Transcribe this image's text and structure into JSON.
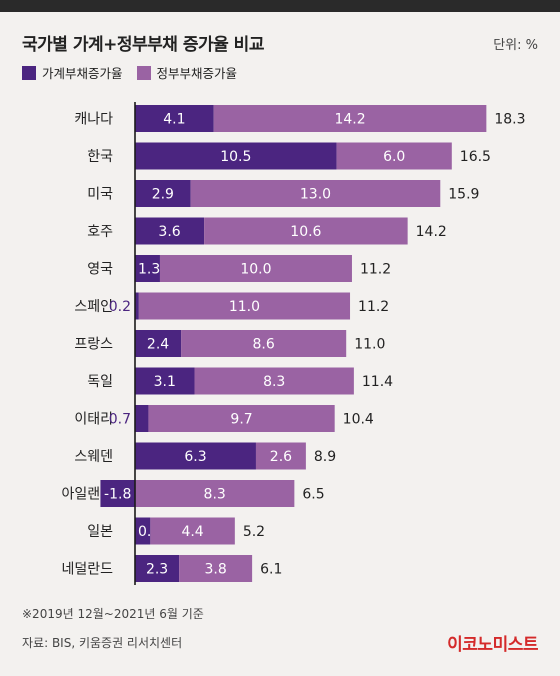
{
  "title": "국가별 가계+정부부채 증가율 비교",
  "unit": "단위: %",
  "footnote": "※2019년 12월~2021년 6월 기준",
  "source": "자료: BIS, 키움증권 리서치센터",
  "brand": "이코노미스트",
  "colors": {
    "household": "#4b2580",
    "government": "#9a63a3",
    "axis": "#1a1a1a",
    "background": "#f3f1ef"
  },
  "chart_data": {
    "type": "bar",
    "orientation": "horizontal",
    "stacked": true,
    "categories": [
      "캐나다",
      "한국",
      "미국",
      "호주",
      "영국",
      "스페인",
      "프랑스",
      "독일",
      "이태리",
      "스웨덴",
      "아일랜드",
      "일본",
      "네덜란드"
    ],
    "series": [
      {
        "name": "가계부채증가율",
        "values": [
          4.1,
          10.5,
          2.9,
          3.6,
          1.3,
          0.2,
          2.4,
          3.1,
          0.7,
          6.3,
          -1.8,
          0.8,
          2.3
        ]
      },
      {
        "name": "정부부채증가율",
        "values": [
          14.2,
          6.0,
          13.0,
          10.6,
          10.0,
          11.0,
          8.6,
          8.3,
          9.7,
          2.6,
          8.3,
          4.4,
          3.8
        ]
      }
    ],
    "totals": [
      18.3,
      16.5,
      15.9,
      14.2,
      11.2,
      11.2,
      11.0,
      11.4,
      10.4,
      8.9,
      6.5,
      5.2,
      6.1
    ],
    "household_label_display": [
      "4.1",
      "10.5",
      "2.9",
      "3.6",
      "1.3",
      "0.2",
      "2.4",
      "3.1",
      "0.7",
      "6.3",
      "-1.8",
      "0.8",
      "2.3"
    ],
    "government_label_display": [
      "14.2",
      "6.0",
      "13.0",
      "10.6",
      "10.0",
      "11.0",
      "8.6",
      "8.3",
      "9.7",
      "2.6",
      "8.3",
      "4.4",
      "3.8"
    ],
    "total_label_display": [
      "18.3",
      "16.5",
      "15.9",
      "14.2",
      "11.2",
      "11.2",
      "11.0",
      "11.4",
      "10.4",
      "8.9",
      "6.5",
      "5.2",
      "6.1"
    ],
    "legend_position": "top-left",
    "grid": false
  }
}
